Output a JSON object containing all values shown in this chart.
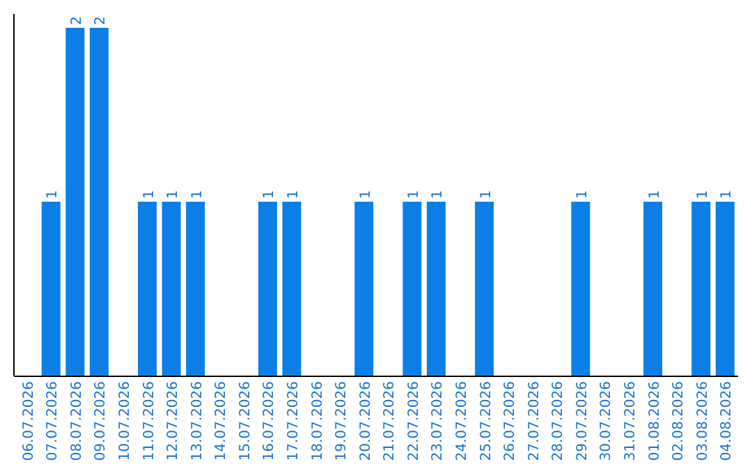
{
  "chart_data": {
    "type": "bar",
    "categories": [
      "06.07.2026",
      "07.07.2026",
      "08.07.2026",
      "09.07.2026",
      "10.07.2026",
      "11.07.2026",
      "12.07.2026",
      "13.07.2026",
      "14.07.2026",
      "15.07.2026",
      "16.07.2026",
      "17.07.2026",
      "18.07.2026",
      "19.07.2026",
      "20.07.2026",
      "21.07.2026",
      "22.07.2026",
      "23.07.2026",
      "24.07.2026",
      "25.07.2026",
      "26.07.2026",
      "27.07.2026",
      "28.07.2026",
      "29.07.2026",
      "30.07.2026",
      "31.07.2026",
      "01.08.2026",
      "02.08.2026",
      "03.08.2026",
      "04.08.2026"
    ],
    "values": [
      0,
      1,
      2,
      2,
      0,
      1,
      1,
      1,
      0,
      0,
      1,
      1,
      0,
      0,
      1,
      0,
      1,
      1,
      0,
      1,
      0,
      0,
      0,
      1,
      0,
      0,
      1,
      0,
      1,
      1
    ],
    "value_labels": [
      null,
      "1",
      "2",
      "2",
      null,
      "1",
      "1",
      "1",
      null,
      null,
      "1",
      "1",
      null,
      null,
      "1",
      null,
      "1",
      "1",
      null,
      "1",
      null,
      null,
      null,
      "1",
      null,
      null,
      "1",
      null,
      "1",
      "1"
    ],
    "color": "#0b7fe6",
    "ylim": [
      0,
      2
    ],
    "tick_labels": "x"
  }
}
